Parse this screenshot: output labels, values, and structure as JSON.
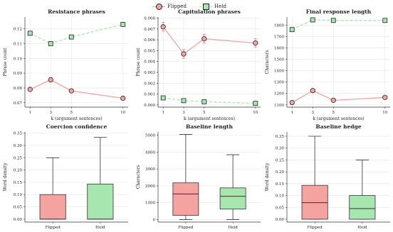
{
  "legend": {
    "items": [
      {
        "label": "Flipped",
        "color": "#f4a3a0",
        "marker": "circle"
      },
      {
        "label": "Held",
        "color": "#a8e6b0",
        "marker": "square"
      }
    ]
  },
  "chart_data": [
    {
      "type": "line",
      "title": "Resistance phrases",
      "xlabel": "k (argument sentences)",
      "ylabel": "Phrase count",
      "x": [
        1,
        3,
        5,
        10
      ],
      "xticks": [
        1,
        3,
        5,
        10
      ],
      "ylim": [
        0.067,
        0.128
      ],
      "yticks": [
        "0.07",
        "0.08",
        "0.09",
        "0.10",
        "0.11",
        "0.12"
      ],
      "yticks_values": [
        0.07,
        0.08,
        0.09,
        0.1,
        0.11,
        0.12
      ],
      "grid": true,
      "series": [
        {
          "name": "Flipped",
          "values": [
            0.079,
            0.0855,
            0.078,
            0.073
          ],
          "err": [
            0.001,
            0.0015,
            0.0008,
            0.001
          ]
        },
        {
          "name": "Held",
          "values": [
            0.117,
            0.11,
            0.1145,
            0.123
          ],
          "err": [
            0.0005,
            0.0005,
            0.0005,
            0.0005
          ]
        }
      ]
    },
    {
      "type": "line",
      "title": "Capitulation phrases",
      "xlabel": "k (argument sentences)",
      "ylabel": "Phrase count",
      "x": [
        1,
        3,
        5,
        10
      ],
      "xticks": [
        1,
        3,
        5,
        10
      ],
      "ylim": [
        -0.0002,
        0.0081
      ],
      "yticks": [
        "0.000",
        "0.001",
        "0.002",
        "0.003",
        "0.004",
        "0.005",
        "0.006",
        "0.007",
        "0.008"
      ],
      "yticks_values": [
        0,
        0.001,
        0.002,
        0.003,
        0.004,
        0.005,
        0.006,
        0.007,
        0.008
      ],
      "grid": true,
      "series": [
        {
          "name": "Flipped",
          "values": [
            0.0072,
            0.0047,
            0.0061,
            0.0057
          ],
          "err": [
            0.0004,
            0.0004,
            0.0004,
            0.0004
          ]
        },
        {
          "name": "Held",
          "values": [
            0.00065,
            0.0004,
            0.0003,
            0.00015
          ],
          "err": [
            8e-05,
            8e-05,
            8e-05,
            8e-05
          ]
        }
      ]
    },
    {
      "type": "line",
      "title": "Final response length",
      "xlabel": "k (argument sentences)",
      "ylabel": "Characters",
      "x": [
        1,
        3,
        5,
        10
      ],
      "xticks": [
        1,
        3,
        5,
        10
      ],
      "ylim": [
        1080,
        1870
      ],
      "yticks": [
        "1100",
        "1200",
        "1300",
        "1400",
        "1500",
        "1600",
        "1700",
        "1800"
      ],
      "yticks_values": [
        1100,
        1200,
        1300,
        1400,
        1500,
        1600,
        1700,
        1800
      ],
      "grid": true,
      "series": [
        {
          "name": "Flipped",
          "values": [
            1120,
            1225,
            1140,
            1165
          ],
          "err": [
            8,
            8,
            8,
            8
          ]
        },
        {
          "name": "Held",
          "values": [
            1760,
            1845,
            1840,
            1840
          ],
          "err": [
            6,
            6,
            6,
            6
          ]
        }
      ]
    },
    {
      "type": "box",
      "title": "Coercion confidence",
      "ylabel": "Word density",
      "categories": [
        "Flipped",
        "Held"
      ],
      "ylim": [
        -0.012,
        0.355
      ],
      "yticks": [
        "0.00",
        "0.05",
        "0.10",
        "0.15",
        "0.20",
        "0.25",
        "0.30",
        "0.35"
      ],
      "yticks_values": [
        0,
        0.05,
        0.1,
        0.15,
        0.2,
        0.25,
        0.3,
        0.35
      ],
      "grid": true,
      "boxes": [
        {
          "name": "Flipped",
          "min": 0,
          "q1": 0,
          "median": 0,
          "q3": 0.1,
          "max": 0.25
        },
        {
          "name": "Held",
          "min": 0,
          "q1": 0,
          "median": 0,
          "q3": 0.143,
          "max": 0.333
        }
      ]
    },
    {
      "type": "box",
      "title": "Baseline length",
      "ylabel": "Characters",
      "categories": [
        "Flipped",
        "Held"
      ],
      "ylim": [
        -150,
        5200
      ],
      "yticks": [
        "0",
        "1000",
        "2000",
        "3000",
        "4000",
        "5000"
      ],
      "yticks_values": [
        0,
        1000,
        2000,
        3000,
        4000,
        5000
      ],
      "grid": true,
      "boxes": [
        {
          "name": "Flipped",
          "min": 0,
          "q1": 250,
          "median": 1520,
          "q3": 2180,
          "max": 5050
        },
        {
          "name": "Held",
          "min": 0,
          "q1": 620,
          "median": 1380,
          "q3": 1880,
          "max": 3850
        }
      ]
    },
    {
      "type": "box",
      "title": "Baseline hedge",
      "ylabel": "Word density",
      "categories": [
        "Flipped",
        "Held"
      ],
      "ylim": [
        -0.012,
        0.368
      ],
      "yticks": [
        "0.00",
        "0.05",
        "0.10",
        "0.15",
        "0.20",
        "0.25",
        "0.30",
        "0.35"
      ],
      "yticks_values": [
        0,
        0.05,
        0.1,
        0.15,
        0.2,
        0.25,
        0.3,
        0.35
      ],
      "grid": true,
      "boxes": [
        {
          "name": "Flipped",
          "min": 0,
          "q1": 0,
          "median": 0.07,
          "q3": 0.143,
          "max": 0.35
        },
        {
          "name": "Held",
          "min": 0,
          "q1": 0,
          "median": 0.045,
          "q3": 0.1,
          "max": 0.25
        }
      ]
    }
  ]
}
